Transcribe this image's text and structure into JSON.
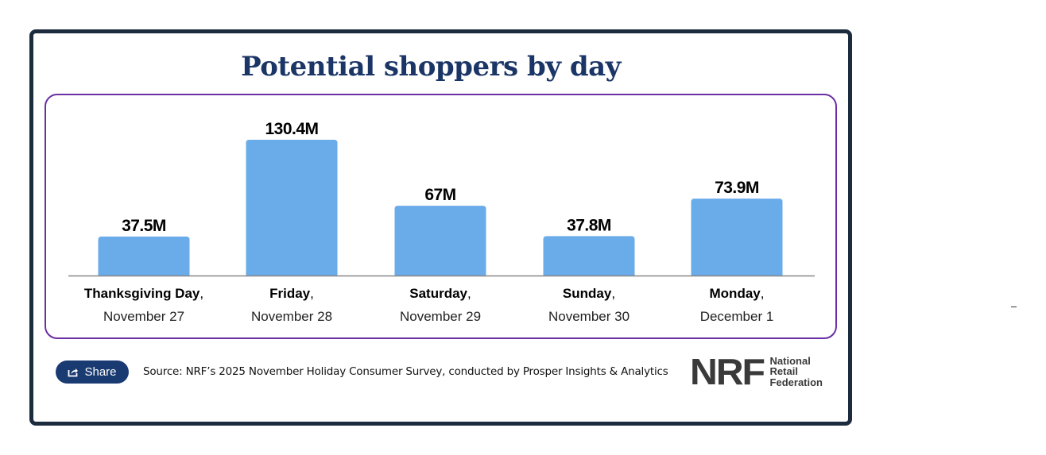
{
  "title": "Potential shoppers by day",
  "chart_data": {
    "type": "bar",
    "title": "Potential shoppers by day",
    "unit": "M",
    "categories": [
      {
        "day": "Thanksgiving Day",
        "sep": ",",
        "date": "November 27"
      },
      {
        "day": "Friday",
        "sep": ",",
        "date": "November 28"
      },
      {
        "day": "Saturday",
        "sep": ",",
        "date": "November 29"
      },
      {
        "day": "Sunday",
        "sep": ",",
        "date": "November 30"
      },
      {
        "day": "Monday",
        "sep": ",",
        "date": "December 1"
      }
    ],
    "values": [
      37.5,
      130.4,
      67,
      37.8,
      73.9
    ],
    "data_labels": [
      "37.5M",
      "130.4M",
      "67M",
      "37.8M",
      "73.9M"
    ],
    "bar_color": "#6aabe9",
    "ylim": [
      0,
      130.4
    ],
    "grid": false
  },
  "share": {
    "label": "Share",
    "icon": "share-icon"
  },
  "source": "Source: NRF’s 2025 November Holiday Consumer Survey, conducted by Prosper Insights & Analytics",
  "logo": {
    "mark": "NRF",
    "lines": [
      "National",
      "Retail",
      "Federation"
    ]
  },
  "colors": {
    "navy": "#1a3566",
    "frame": "#1d2b3e",
    "purple": "#6b2fa3"
  }
}
